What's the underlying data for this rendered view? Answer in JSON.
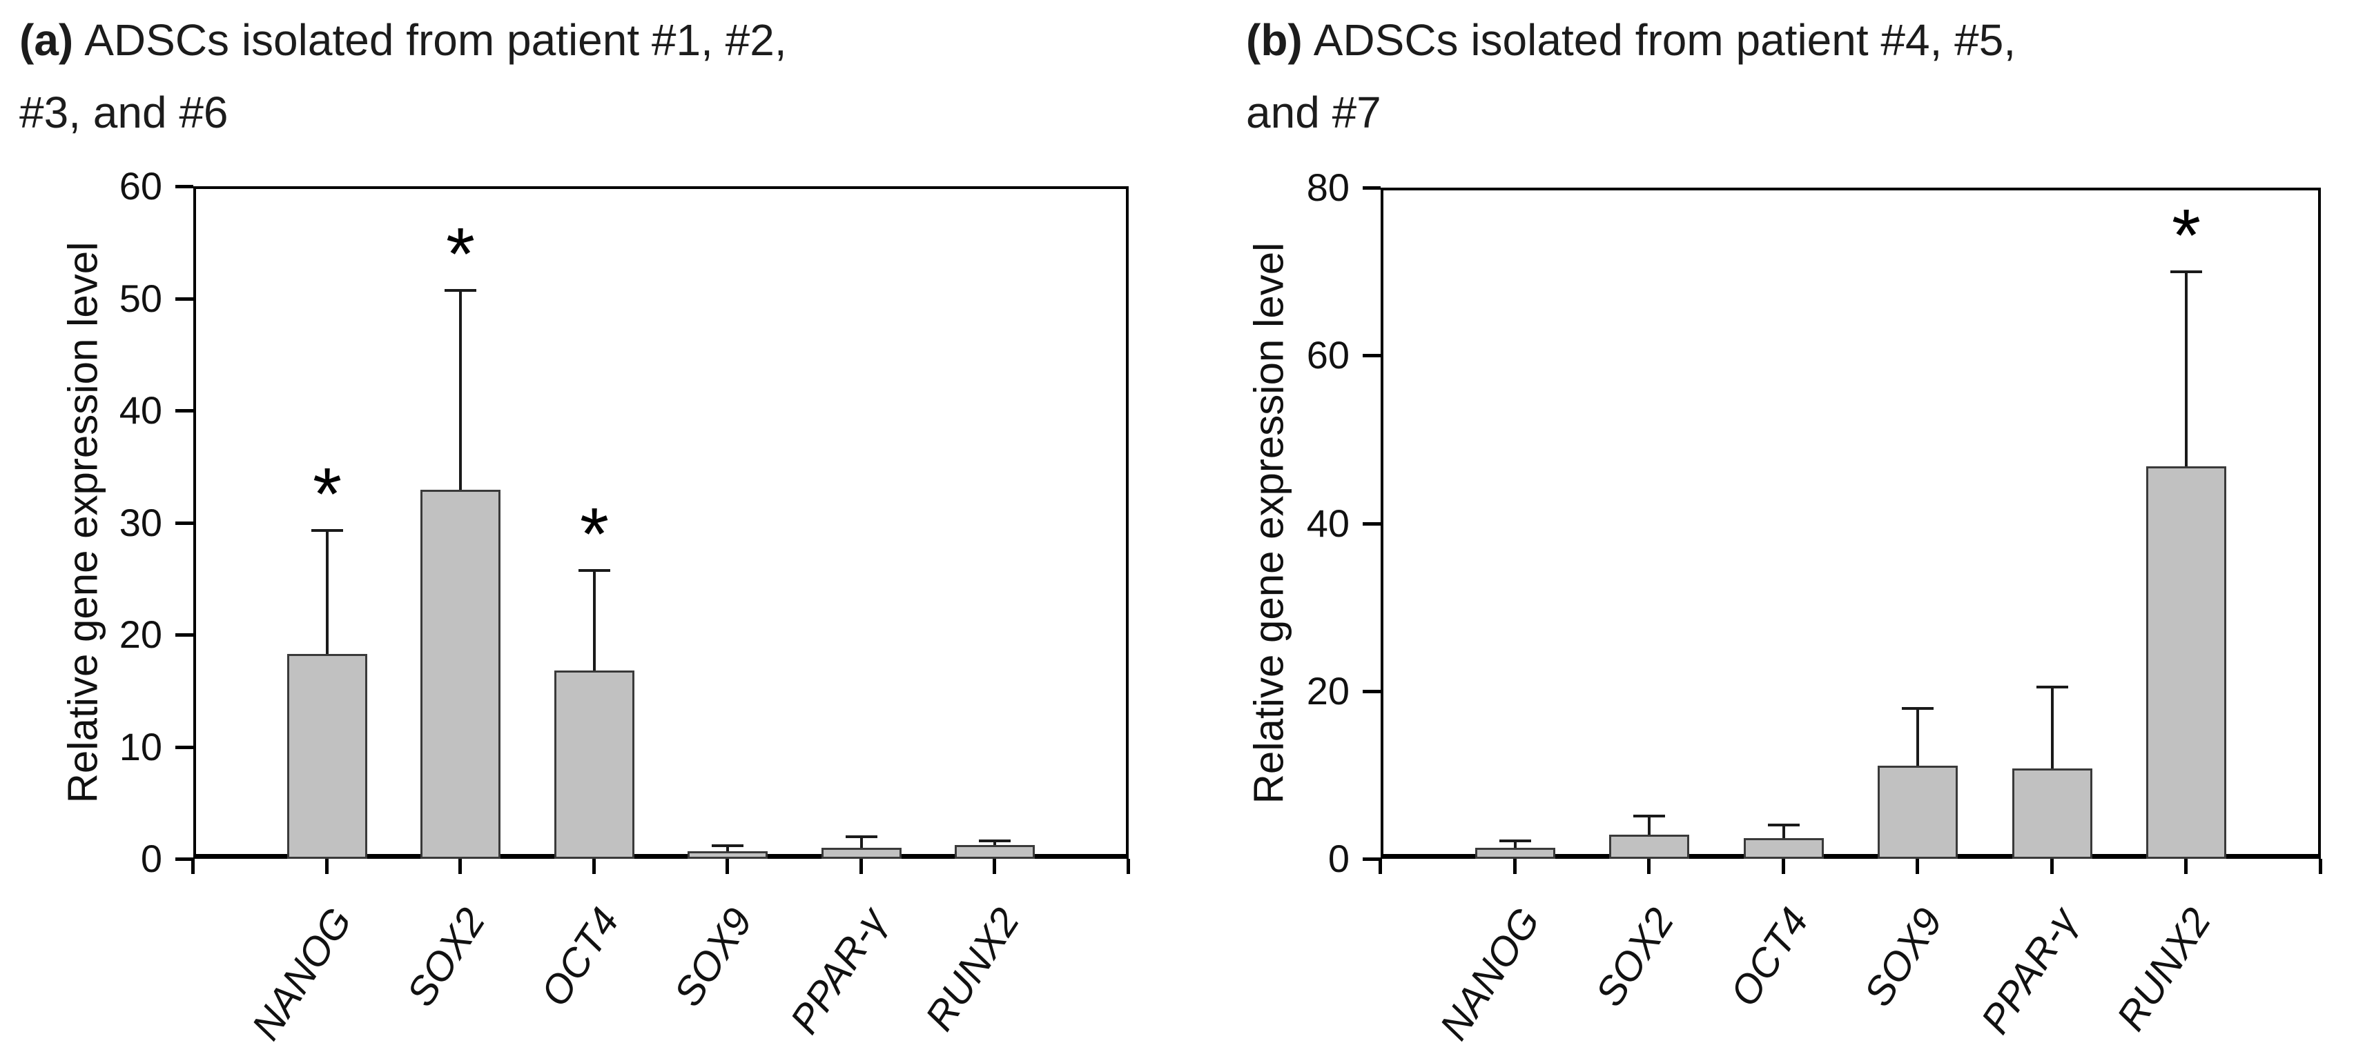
{
  "background_color": "#ffffff",
  "accent_colors": {
    "bar_fill": "#c1c1c1",
    "bar_border": "#3a3a3a",
    "axis": "#000000"
  },
  "panels": [
    {
      "label": "(a)",
      "title_line1": "ADSCs isolated from patient #1, #2,",
      "title_line2": "#3, and #6",
      "ylabel": "Relative gene expression level"
    },
    {
      "label": "(b)",
      "title_line1": "ADSCs isolated from patient #4, #5,",
      "title_line2": "and #7",
      "ylabel": "Relative gene expression level"
    }
  ],
  "chart_data": [
    {
      "type": "bar",
      "panel": "a",
      "title": "(a) ADSCs isolated from patient #1, #2, #3, and #6",
      "xlabel": "",
      "ylabel": "Relative gene expression level",
      "categories": [
        "NANOG",
        "SOX2",
        "OCT4",
        "SOX9",
        "PPAR-γ",
        "RUNX2"
      ],
      "values": [
        18.3,
        32.9,
        16.8,
        0.7,
        1.0,
        1.2
      ],
      "errors_upper": [
        11.0,
        17.8,
        8.9,
        0.5,
        1.0,
        0.4
      ],
      "significance": [
        "*",
        "*",
        "*",
        "",
        "",
        ""
      ],
      "ylim": [
        0,
        60
      ],
      "yticks": [
        0,
        10,
        20,
        30,
        40,
        50,
        60
      ],
      "grid": false,
      "legend": "none",
      "bar_fill": "#c1c1c1",
      "bar_border": "#3a3a3a"
    },
    {
      "type": "bar",
      "panel": "b",
      "title": "(b) ADSCs isolated from patient #4, #5, and #7",
      "xlabel": "",
      "ylabel": "Relative gene expression level",
      "categories": [
        "NANOG",
        "SOX2",
        "OCT4",
        "SOX9",
        "PPAR-γ",
        "RUNX2"
      ],
      "values": [
        1.3,
        2.9,
        2.5,
        11.1,
        10.8,
        46.8
      ],
      "errors_upper": [
        0.8,
        2.2,
        1.5,
        6.8,
        9.7,
        23.2
      ],
      "significance": [
        "",
        "",
        "",
        "",
        "",
        "*"
      ],
      "ylim": [
        0,
        80
      ],
      "yticks": [
        0,
        20,
        40,
        60,
        80
      ],
      "grid": false,
      "legend": "none",
      "bar_fill": "#c1c1c1",
      "bar_border": "#3a3a3a"
    }
  ]
}
